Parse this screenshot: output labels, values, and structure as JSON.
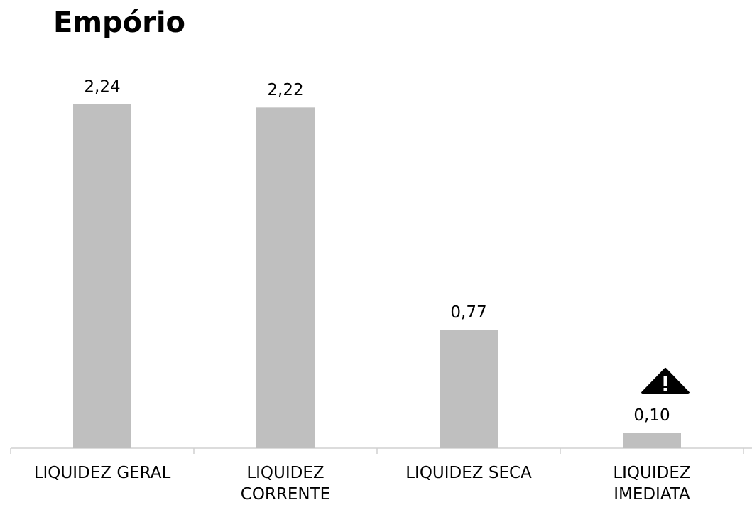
{
  "chart_data": {
    "type": "bar",
    "title": "Empório",
    "categories": [
      "LIQUIDEZ GERAL",
      "LIQUIDEZ\nCORRENTE",
      "LIQUIDEZ SECA",
      "LIQUIDEZ\nIMEDIATA"
    ],
    "values": [
      2.24,
      2.22,
      0.77,
      0.1
    ],
    "value_labels": [
      "2,24",
      "2,22",
      "0,77",
      "0,10"
    ],
    "color": "#bfbfbf"
  }
}
